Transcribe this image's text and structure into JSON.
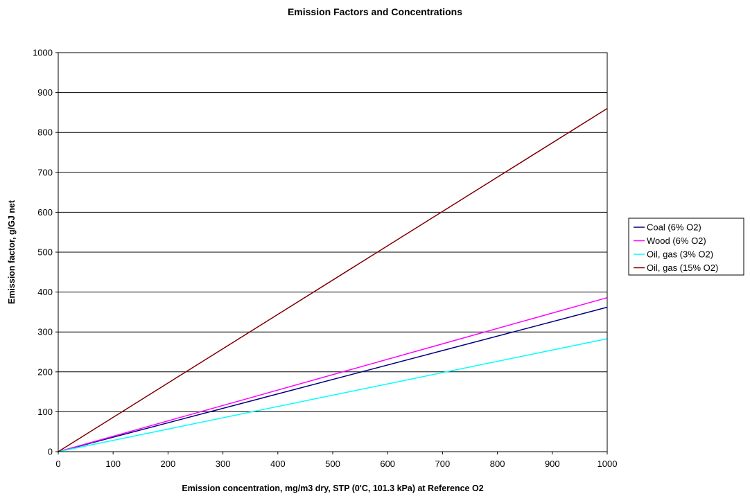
{
  "chart_data": {
    "type": "line",
    "title": "Emission Factors and Concentrations",
    "xlabel": "Emission concentration, mg/m3 dry, STP (0'C, 101.3 kPa) at Reference O2",
    "ylabel": "Emission factor, g/GJ net",
    "xlim": [
      0,
      1000
    ],
    "ylim": [
      0,
      1000
    ],
    "xticks": [
      0,
      100,
      200,
      300,
      400,
      500,
      600,
      700,
      800,
      900,
      1000
    ],
    "yticks": [
      0,
      100,
      200,
      300,
      400,
      500,
      600,
      700,
      800,
      900,
      1000
    ],
    "grid": "horizontal",
    "legend_position": "right",
    "series": [
      {
        "name": "Coal (6% O2)",
        "color": "#000080",
        "x": [
          0,
          1000
        ],
        "y": [
          0,
          362
        ]
      },
      {
        "name": "Wood (6% O2)",
        "color": "#ff00ff",
        "x": [
          0,
          1000
        ],
        "y": [
          0,
          386
        ]
      },
      {
        "name": "Oil, gas (3% O2)",
        "color": "#00ffff",
        "x": [
          0,
          1000
        ],
        "y": [
          0,
          283
        ]
      },
      {
        "name": "Oil, gas (15% O2)",
        "color": "#800000",
        "x": [
          0,
          1000
        ],
        "y": [
          0,
          860
        ]
      }
    ]
  }
}
